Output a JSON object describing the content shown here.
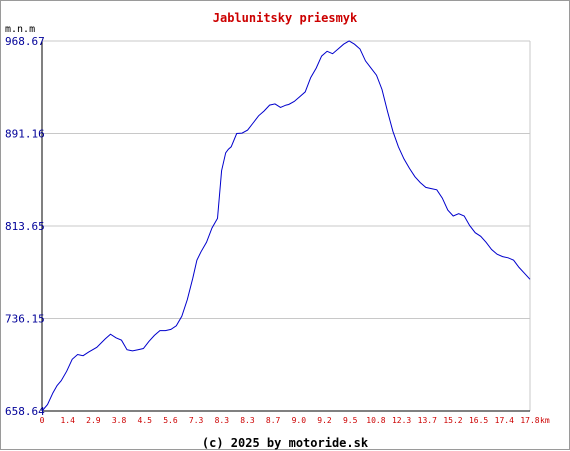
{
  "chart_data": {
    "type": "line",
    "title": "Jablunitsky priesmyk",
    "ylabel": "m.n.m",
    "x_unit": "km",
    "footer": "(c) 2025 by motoride.sk",
    "ylim": [
      658.64,
      968.67
    ],
    "xlim": [
      0,
      17.8
    ],
    "y_ticks": [
      "968.67",
      "891.16",
      "813.65",
      "736.15",
      "658.64"
    ],
    "x_ticks": [
      "0",
      "1.4",
      "2.9",
      "3.8",
      "4.5",
      "5.6",
      "7.3",
      "8.3",
      "8.3",
      "8.7",
      "9.0",
      "9.2",
      "9.5",
      "10.8",
      "12.3",
      "13.7",
      "15.2",
      "16.5",
      "17.4",
      "17.8"
    ],
    "grid": true,
    "colors": {
      "title": "#cc0000",
      "line": "#0000cc",
      "y_ticks": "#000099",
      "x_ticks": "#cc0000",
      "grid": "#c8c8c8"
    },
    "series": [
      {
        "x": [
          0,
          0.2,
          0.4,
          0.55,
          0.7,
          0.9,
          1.1,
          1.3,
          1.5,
          1.7,
          2.0,
          2.3,
          2.5,
          2.7,
          2.9,
          3.1,
          3.3,
          3.5,
          3.7,
          3.9,
          4.1,
          4.3,
          4.5,
          4.7,
          4.9,
          5.1,
          5.3,
          5.5,
          5.65,
          5.8,
          6.0,
          6.2,
          6.4,
          6.55,
          6.7,
          6.8,
          6.9,
          7.1,
          7.3,
          7.5,
          7.7,
          7.9,
          8.1,
          8.3,
          8.5,
          8.7,
          8.9,
          9.0,
          9.2,
          9.4,
          9.6,
          9.8,
          10.0,
          10.2,
          10.4,
          10.6,
          10.8,
          11.0,
          11.2,
          11.4,
          11.6,
          11.8,
          12.0,
          12.2,
          12.4,
          12.6,
          12.8,
          13.0,
          13.2,
          13.4,
          13.6,
          13.8,
          14.0,
          14.2,
          14.4,
          14.6,
          14.8,
          15.0,
          15.2,
          15.4,
          15.6,
          15.8,
          16.0,
          16.2,
          16.4,
          16.6,
          16.8,
          17.0,
          17.2,
          17.4,
          17.6,
          17.8
        ],
        "y": [
          658.64,
          664,
          674,
          680,
          684,
          692,
          702,
          706,
          705,
          708,
          712,
          719,
          723,
          720,
          718,
          710,
          709,
          710,
          711,
          717,
          722,
          726,
          726,
          727,
          730,
          738,
          752,
          770,
          785,
          792,
          800,
          812,
          820,
          860,
          875,
          878,
          880,
          891.2,
          891.5,
          894,
          900,
          906,
          910,
          915,
          916,
          913,
          915,
          915.5,
          918,
          922,
          926,
          938,
          946,
          956,
          960,
          958,
          962,
          966,
          968.67,
          966,
          962,
          952,
          946,
          940,
          928,
          910,
          893,
          880,
          870,
          862,
          855,
          850,
          846,
          845,
          844,
          837,
          827,
          822,
          824,
          822,
          814,
          808,
          805,
          800,
          794,
          790,
          788,
          787,
          785,
          779,
          774,
          769
        ]
      }
    ]
  }
}
